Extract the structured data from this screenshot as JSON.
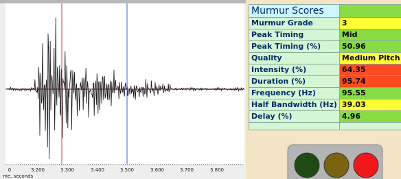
{
  "waveform": {
    "x_tick_labels": [
      "0",
      "3.200",
      "3.300",
      "3.400",
      "3.500",
      "3.600",
      "3.700",
      "3.800"
    ],
    "x_axis_label": "me, seconds"
  },
  "table": {
    "rows": [
      [
        "Murmur Scores"
      ],
      [
        "Murmur Grade",
        "3"
      ],
      [
        "Peak Timing",
        "Mid"
      ],
      [
        "Peak Timing (%)",
        "50.96"
      ],
      [
        "Quality",
        "Medium Pitch"
      ],
      [
        "Intensity (%)",
        "64.35"
      ],
      [
        "Duration (%)",
        "95.74"
      ],
      [
        "Frequency (Hz)",
        "95.55"
      ],
      [
        "Half Bandwidth (Hz)",
        "39.03"
      ],
      [
        "Delay (%)",
        "4.96"
      ]
    ]
  }
}
